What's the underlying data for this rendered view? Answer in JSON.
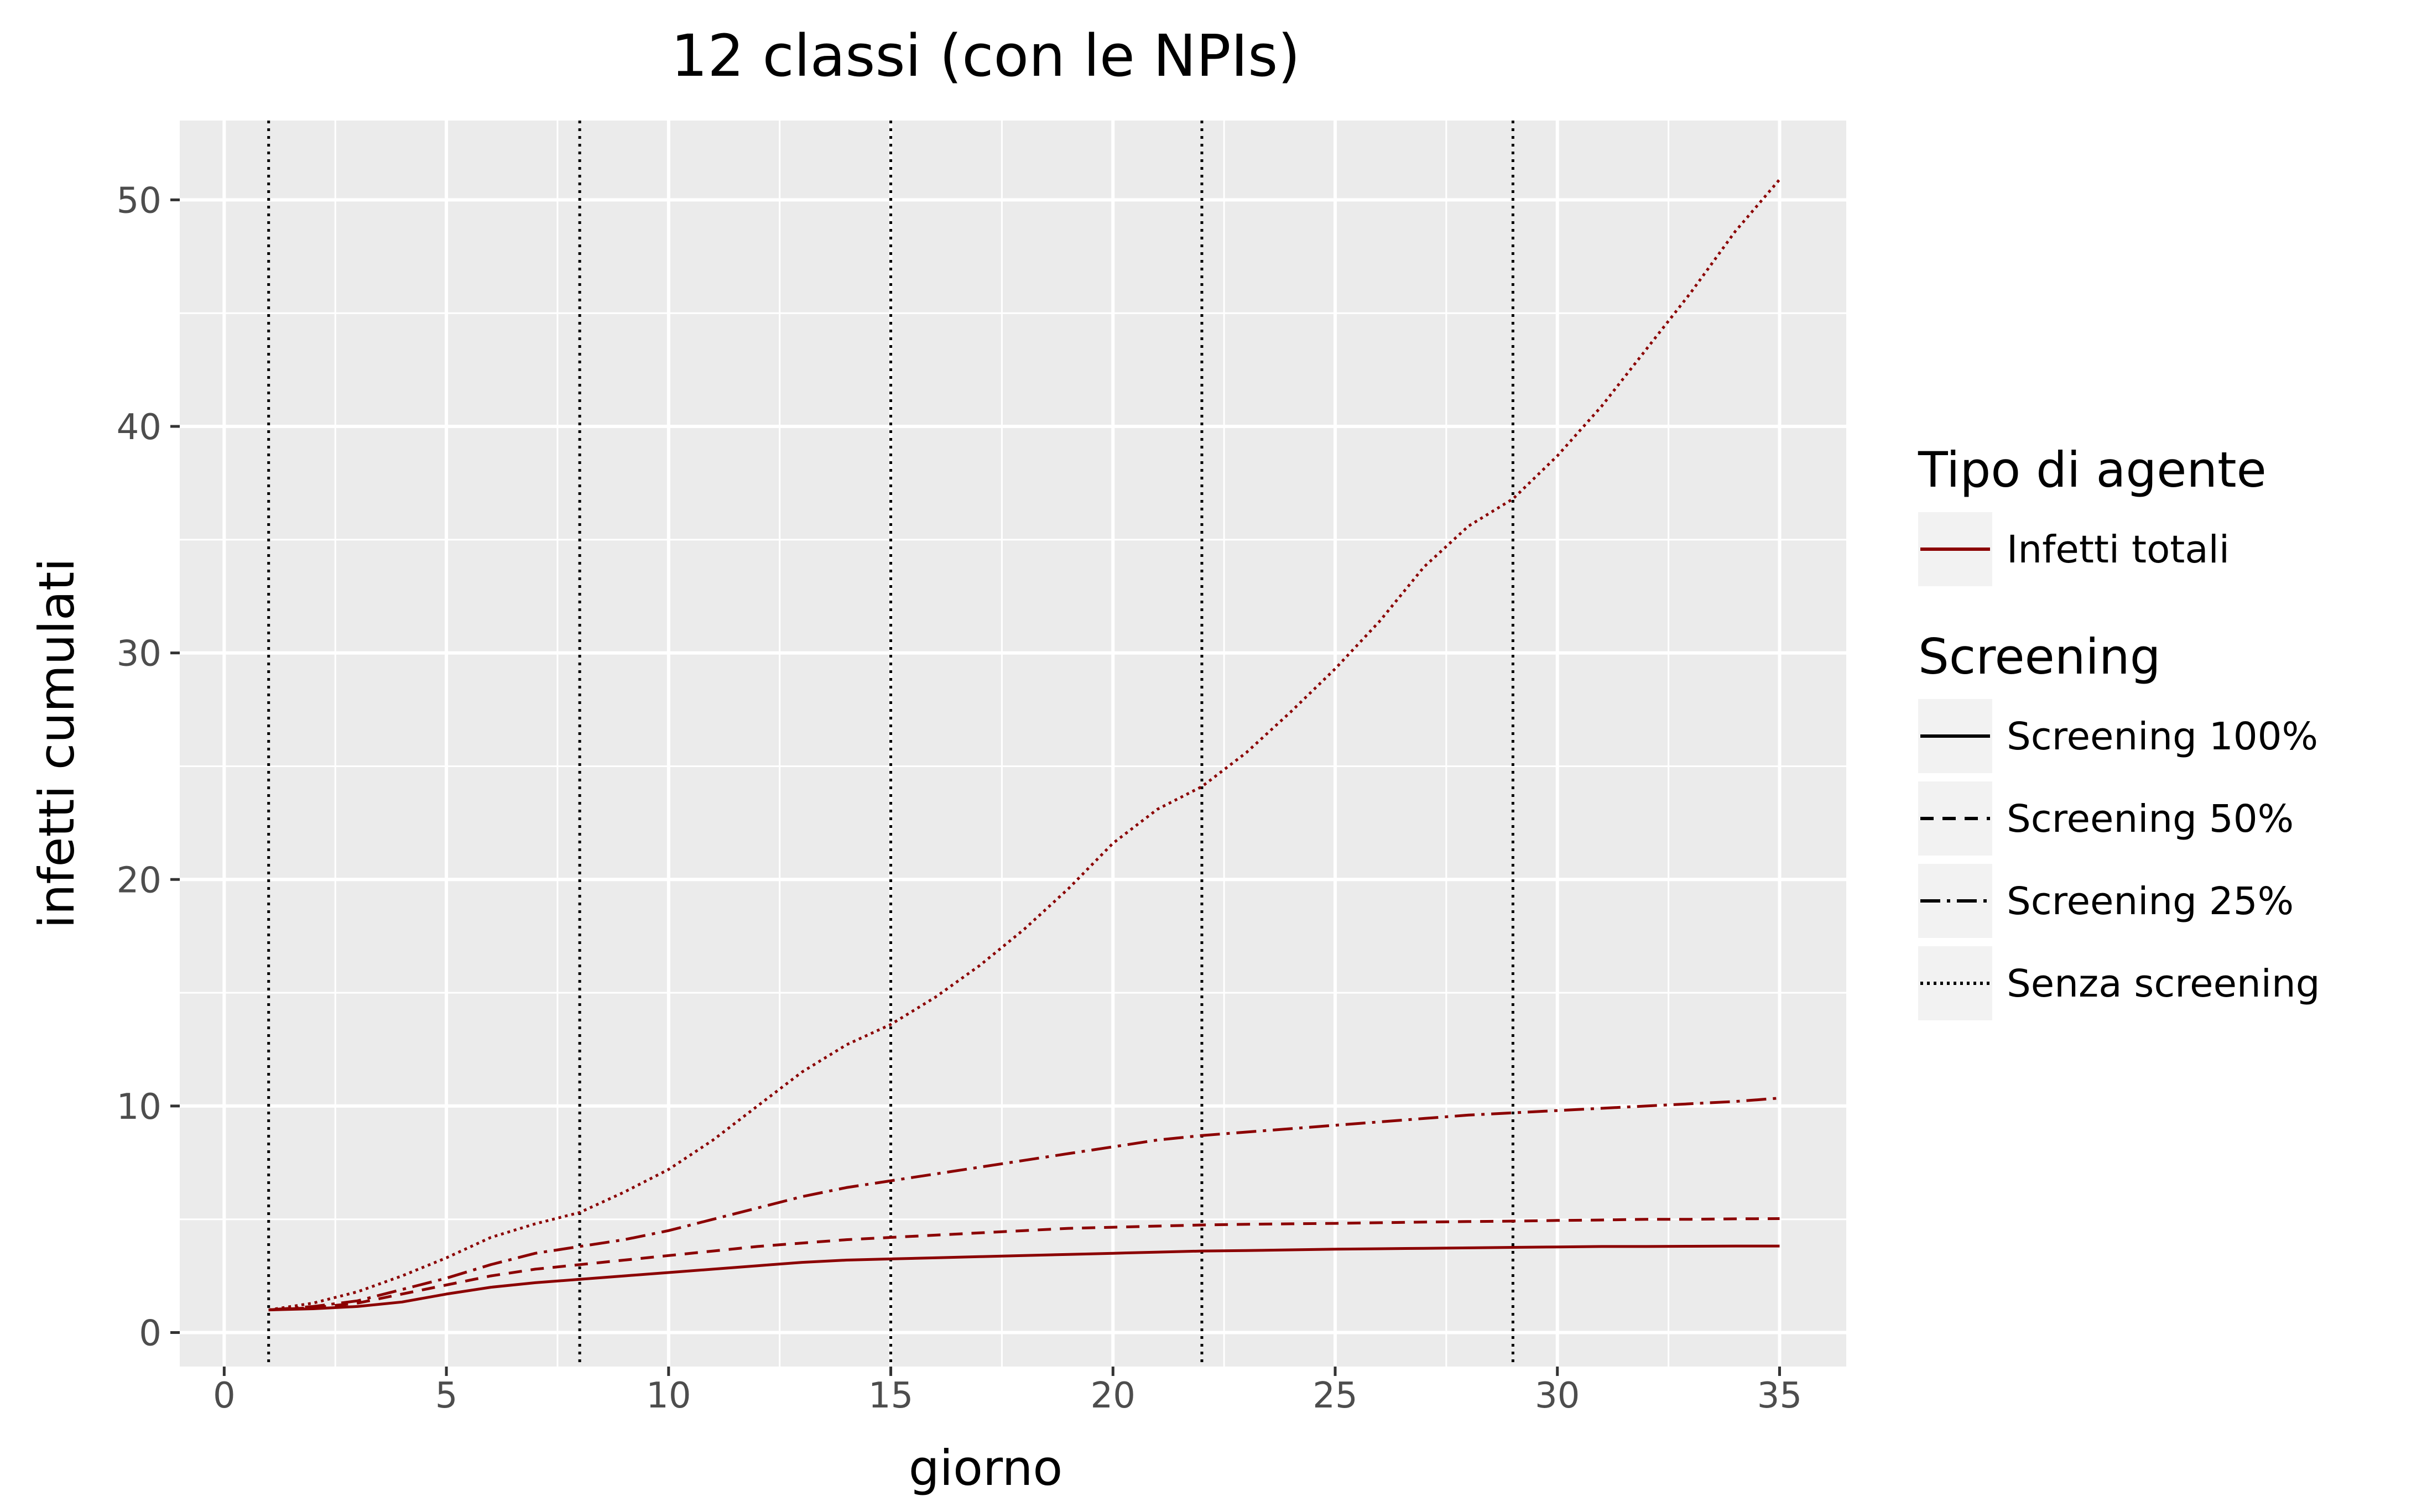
{
  "chart_data": {
    "type": "line",
    "title": "12 classi (con le NPIs)",
    "xlabel": "giorno",
    "ylabel": "infetti cumulati",
    "xlim": [
      -1,
      36.5
    ],
    "ylim": [
      -1.5,
      53.5
    ],
    "x_ticks": [
      0,
      5,
      10,
      15,
      20,
      25,
      30,
      35
    ],
    "y_ticks": [
      0,
      10,
      20,
      30,
      40,
      50
    ],
    "grid": true,
    "vlines": [
      1,
      8,
      15,
      22,
      29
    ],
    "x": [
      1,
      2,
      3,
      4,
      5,
      6,
      7,
      8,
      9,
      10,
      11,
      12,
      13,
      14,
      15,
      16,
      17,
      18,
      19,
      20,
      21,
      22,
      23,
      24,
      25,
      26,
      27,
      28,
      29,
      30,
      31,
      32,
      33,
      34,
      35
    ],
    "series": [
      {
        "name": "Screening 100%",
        "linetype": "solid",
        "values": [
          1.0,
          1.05,
          1.15,
          1.35,
          1.7,
          2.0,
          2.2,
          2.35,
          2.5,
          2.65,
          2.8,
          2.95,
          3.1,
          3.2,
          3.25,
          3.3,
          3.35,
          3.4,
          3.45,
          3.5,
          3.55,
          3.6,
          3.62,
          3.65,
          3.68,
          3.7,
          3.72,
          3.74,
          3.76,
          3.78,
          3.8,
          3.8,
          3.81,
          3.82,
          3.82
        ]
      },
      {
        "name": "Screening 50%",
        "linetype": "dashed",
        "values": [
          1.0,
          1.1,
          1.3,
          1.7,
          2.1,
          2.5,
          2.8,
          3.0,
          3.2,
          3.4,
          3.6,
          3.8,
          3.95,
          4.1,
          4.2,
          4.3,
          4.4,
          4.5,
          4.6,
          4.65,
          4.7,
          4.75,
          4.78,
          4.8,
          4.82,
          4.85,
          4.88,
          4.9,
          4.92,
          4.95,
          4.97,
          5.0,
          5.0,
          5.02,
          5.03
        ]
      },
      {
        "name": "Screening 25%",
        "linetype": "dashdot",
        "values": [
          1.0,
          1.15,
          1.4,
          1.9,
          2.4,
          3.0,
          3.5,
          3.8,
          4.1,
          4.5,
          5.0,
          5.5,
          6.0,
          6.4,
          6.7,
          7.0,
          7.3,
          7.6,
          7.9,
          8.2,
          8.5,
          8.7,
          8.85,
          9.0,
          9.15,
          9.3,
          9.45,
          9.6,
          9.7,
          9.8,
          9.9,
          10.0,
          10.1,
          10.2,
          10.35
        ]
      },
      {
        "name": "Senza screening",
        "linetype": "dotted",
        "values": [
          1.0,
          1.3,
          1.8,
          2.5,
          3.3,
          4.2,
          4.8,
          5.3,
          6.2,
          7.2,
          8.5,
          10.0,
          11.5,
          12.7,
          13.6,
          14.8,
          16.2,
          17.8,
          19.6,
          21.6,
          23.1,
          24.1,
          25.6,
          27.4,
          29.3,
          31.4,
          33.8,
          35.6,
          36.8,
          38.7,
          40.9,
          43.4,
          45.9,
          48.6,
          50.9
        ]
      }
    ],
    "color": "#8b0000",
    "legend": {
      "position": "right",
      "groups": [
        {
          "title": "Tipo di agente",
          "items": [
            {
              "label": "Infetti totali",
              "linetype": "solid",
              "color": "#8b0000"
            }
          ]
        },
        {
          "title": "Screening",
          "items": [
            {
              "label": "Screening 100%",
              "linetype": "solid",
              "color": "#000000"
            },
            {
              "label": "Screening 50%",
              "linetype": "dashed",
              "color": "#000000"
            },
            {
              "label": "Screening 25%",
              "linetype": "dashdot",
              "color": "#000000"
            },
            {
              "label": "Senza screening",
              "linetype": "dotted",
              "color": "#000000"
            }
          ]
        }
      ]
    },
    "colors": {
      "panel": "#ebebeb",
      "grid": "#ffffff",
      "key_bg": "#f2f2f2",
      "vline": "#000000"
    }
  }
}
